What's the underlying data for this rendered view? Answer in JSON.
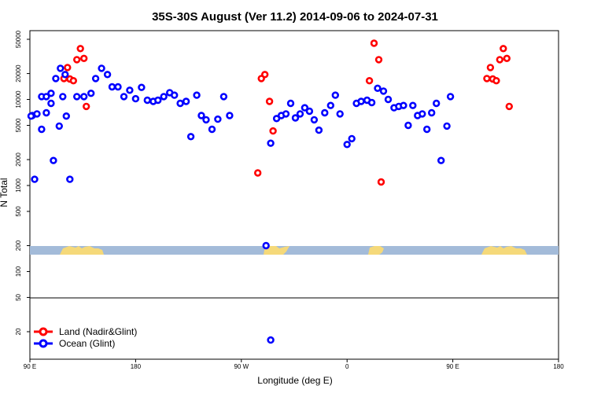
{
  "chart_data": {
    "type": "scatter",
    "title": "35S-30S August (Ver 11.2)   2014-09-06 to 2024-07-31",
    "xlabel": "Longitude (deg E)",
    "ylabel": "N Total",
    "y_scale": "log",
    "xlim": [
      "90 E",
      "180 (east of dateline, wrapping)"
    ],
    "x_tick_labels": [
      "90 E",
      "180",
      "90 W",
      "0",
      "90 E",
      "180"
    ],
    "y_tick_labels": [
      "50000",
      "20000",
      "10000",
      "5000",
      "2000",
      "1000",
      "500",
      "200",
      "100",
      "50",
      "20"
    ],
    "legend_placement": "bottom-left",
    "grid": false,
    "colors": {
      "land": "#ff0000",
      "ocean": "#0000ff",
      "map_ocean": "#a3bbd9",
      "map_land": "#f5d97a"
    },
    "series": [
      {
        "name": "Land (Nadir&Glint)",
        "color": "#ff0000",
        "points": [
          {
            "lon": 119,
            "n": 17500
          },
          {
            "lon": 122,
            "n": 23500
          },
          {
            "lon": 124,
            "n": 17300
          },
          {
            "lon": 127,
            "n": 16500
          },
          {
            "lon": 130,
            "n": 29000
          },
          {
            "lon": 133,
            "n": 39000
          },
          {
            "lon": 136,
            "n": 30000
          },
          {
            "lon": 138,
            "n": 8300
          },
          {
            "lon": -76,
            "n": 1400
          },
          {
            "lon": -73,
            "n": 17500
          },
          {
            "lon": -70,
            "n": 19500
          },
          {
            "lon": -66,
            "n": 9500
          },
          {
            "lon": -63,
            "n": 4300
          },
          {
            "lon": 19,
            "n": 16500
          },
          {
            "lon": 23,
            "n": 45000
          },
          {
            "lon": 27,
            "n": 29000
          },
          {
            "lon": 29,
            "n": 1100
          },
          {
            "lon": 119,
            "n": 17500,
            "cycle": 2
          },
          {
            "lon": 122,
            "n": 23500,
            "cycle": 2
          },
          {
            "lon": 124,
            "n": 17300,
            "cycle": 2
          },
          {
            "lon": 127,
            "n": 16500,
            "cycle": 2
          },
          {
            "lon": 130,
            "n": 29000,
            "cycle": 2
          },
          {
            "lon": 133,
            "n": 39000,
            "cycle": 2
          },
          {
            "lon": 136,
            "n": 30000,
            "cycle": 2
          },
          {
            "lon": 138,
            "n": 8300,
            "cycle": 2
          }
        ]
      },
      {
        "name": "Ocean (Glint)",
        "color": "#0000ff",
        "points": [
          {
            "lon": 92,
            "n": 6500
          },
          {
            "lon": 96,
            "n": 6800
          },
          {
            "lon": 100,
            "n": 4500
          },
          {
            "lon": 104,
            "n": 7000
          },
          {
            "lon": 108,
            "n": 9000
          },
          {
            "lon": 110,
            "n": 1950
          },
          {
            "lon": 115,
            "n": 4900
          },
          {
            "lon": 118,
            "n": 10800
          },
          {
            "lon": 121,
            "n": 6400
          },
          {
            "lon": 124,
            "n": 1180
          },
          {
            "lon": 130,
            "n": 10800
          },
          {
            "lon": 136,
            "n": 10800
          },
          {
            "lon": 142,
            "n": 11800
          },
          {
            "lon": 146,
            "n": 17500
          },
          {
            "lon": 151,
            "n": 23000
          },
          {
            "lon": 156,
            "n": 19500
          },
          {
            "lon": 160,
            "n": 14000
          },
          {
            "lon": 165,
            "n": 14000
          },
          {
            "lon": 170,
            "n": 10800
          },
          {
            "lon": 175,
            "n": 12800
          },
          {
            "lon": 180,
            "n": 10200
          },
          {
            "lon": -175,
            "n": 13800
          },
          {
            "lon": -170,
            "n": 9800
          },
          {
            "lon": -165,
            "n": 9500
          },
          {
            "lon": -161,
            "n": 9800
          },
          {
            "lon": -156,
            "n": 10800
          },
          {
            "lon": -151,
            "n": 12000
          },
          {
            "lon": -147,
            "n": 11200
          },
          {
            "lon": -142,
            "n": 9000
          },
          {
            "lon": -137,
            "n": 9500
          },
          {
            "lon": -133,
            "n": 3700
          },
          {
            "lon": -128,
            "n": 11200
          },
          {
            "lon": -124,
            "n": 6500
          },
          {
            "lon": -120,
            "n": 5800
          },
          {
            "lon": -115,
            "n": 4500
          },
          {
            "lon": -110,
            "n": 5900
          },
          {
            "lon": -105,
            "n": 10800
          },
          {
            "lon": -100,
            "n": 6500
          },
          {
            "lon": -69,
            "n": 200
          },
          {
            "lon": -65,
            "n": 3100
          },
          {
            "lon": -60,
            "n": 6000
          },
          {
            "lon": -56,
            "n": 6500
          },
          {
            "lon": -52,
            "n": 6800
          },
          {
            "lon": -48,
            "n": 9000
          },
          {
            "lon": -44,
            "n": 6100
          },
          {
            "lon": -40,
            "n": 6800
          },
          {
            "lon": -36,
            "n": 8000
          },
          {
            "lon": -32,
            "n": 7300
          },
          {
            "lon": -28,
            "n": 5800
          },
          {
            "lon": -24,
            "n": 4400
          },
          {
            "lon": -19,
            "n": 7000
          },
          {
            "lon": -14,
            "n": 8500
          },
          {
            "lon": -10,
            "n": 11200
          },
          {
            "lon": -6,
            "n": 6800
          },
          {
            "lon": 0,
            "n": 3000
          },
          {
            "lon": 4,
            "n": 3500
          },
          {
            "lon": 8,
            "n": 9000
          },
          {
            "lon": 12,
            "n": 9500
          },
          {
            "lon": 17,
            "n": 9800
          },
          {
            "lon": 21,
            "n": 9200
          },
          {
            "lon": 26,
            "n": 13500
          },
          {
            "lon": 31,
            "n": 12500
          },
          {
            "lon": 35,
            "n": 10000
          },
          {
            "lon": 40,
            "n": 8000
          },
          {
            "lon": 44,
            "n": 8300
          },
          {
            "lon": 48,
            "n": 8500
          },
          {
            "lon": 52,
            "n": 5000
          },
          {
            "lon": 56,
            "n": 8500
          },
          {
            "lon": 60,
            "n": 6500
          },
          {
            "lon": 64,
            "n": 6800
          },
          {
            "lon": 68,
            "n": 4500
          },
          {
            "lon": 72,
            "n": 7000
          },
          {
            "lon": 76,
            "n": 9000
          },
          {
            "lon": 80,
            "n": 1950
          },
          {
            "lon": 85,
            "n": 4900
          },
          {
            "lon": 88,
            "n": 10800
          },
          {
            "lon": 91,
            "n": 6400
          },
          {
            "lon": 94,
            "n": 1180
          },
          {
            "lon": 100,
            "n": 10800
          },
          {
            "lon": 104,
            "n": 10800
          },
          {
            "lon": 108,
            "n": 11800
          },
          {
            "lon": 112,
            "n": 17500
          },
          {
            "lon": 116,
            "n": 23000
          },
          {
            "lon": 120,
            "n": 19500
          },
          {
            "lon": -65,
            "n": 16
          }
        ]
      }
    ]
  }
}
